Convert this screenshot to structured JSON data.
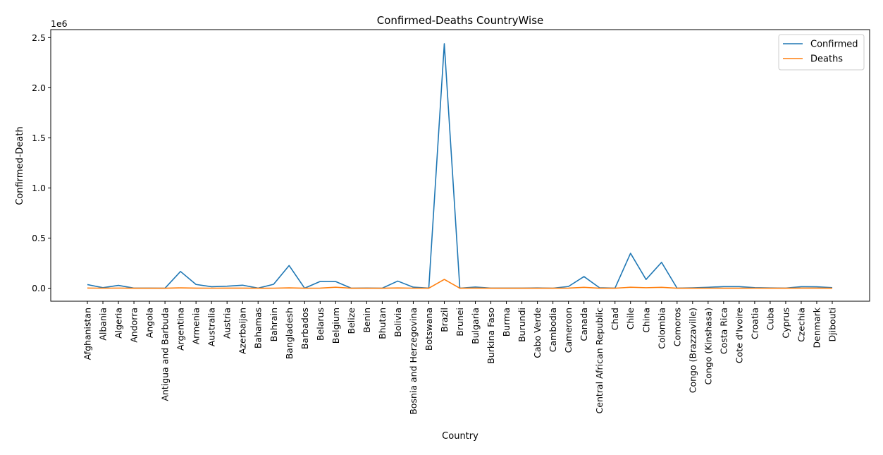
{
  "chart_data": {
    "type": "line",
    "title": "Confirmed-Deaths CountryWise",
    "xlabel": "Country",
    "ylabel": "Confirmed-Death",
    "y_scale_label": "1e6",
    "ylim": [
      -130000,
      2580000
    ],
    "yticks": [
      0,
      500000,
      1000000,
      1500000,
      2000000,
      2500000
    ],
    "ytick_labels": [
      "0.0",
      "0.5",
      "1.0",
      "1.5",
      "2.0",
      "2.5"
    ],
    "grid": false,
    "legend": "top-right",
    "categories": [
      "Afghanistan",
      "Albania",
      "Algeria",
      "Andorra",
      "Angola",
      "Antigua and Barbuda",
      "Argentina",
      "Armenia",
      "Australia",
      "Austria",
      "Azerbaijan",
      "Bahamas",
      "Bahrain",
      "Bangladesh",
      "Barbados",
      "Belarus",
      "Belgium",
      "Belize",
      "Benin",
      "Bhutan",
      "Bolivia",
      "Bosnia and Herzegovina",
      "Botswana",
      "Brazil",
      "Brunei",
      "Bulgaria",
      "Burkina Faso",
      "Burma",
      "Burundi",
      "Cabo Verde",
      "Cambodia",
      "Cameroon",
      "Canada",
      "Central African Republic",
      "Chad",
      "Chile",
      "China",
      "Colombia",
      "Comoros",
      "Congo (Brazzaville)",
      "Congo (Kinshasa)",
      "Costa Rica",
      "Cote d'Ivoire",
      "Croatia",
      "Cuba",
      "Cyprus",
      "Czechia",
      "Denmark",
      "Djibouti"
    ],
    "series": [
      {
        "name": "Confirmed",
        "color": "#1f77b4",
        "values": [
          36000,
          5000,
          28000,
          900,
          1000,
          100,
          167000,
          37000,
          15000,
          20000,
          30000,
          500,
          39000,
          226000,
          100,
          67000,
          66000,
          48,
          1800,
          100,
          71000,
          10000,
          700,
          2440000,
          141,
          11000,
          1100,
          350,
          380,
          2100,
          200,
          17000,
          116000,
          4500,
          900,
          348000,
          87000,
          258000,
          350,
          3200,
          8800,
          15800,
          15600,
          4900,
          2500,
          1100,
          15000,
          13500,
          5000
        ]
      },
      {
        "name": "Deaths",
        "color": "#ff7f0e",
        "values": [
          1200,
          160,
          1150,
          52,
          41,
          3,
          3100,
          700,
          155,
          710,
          400,
          11,
          140,
          2970,
          7,
          540,
          9800,
          2,
          36,
          0,
          2650,
          290,
          2,
          87600,
          3,
          380,
          54,
          6,
          1,
          20,
          0,
          390,
          8900,
          59,
          75,
          9200,
          4600,
          8800,
          7,
          54,
          210,
          70,
          100,
          130,
          87,
          19,
          370,
          610,
          58
        ]
      }
    ]
  }
}
